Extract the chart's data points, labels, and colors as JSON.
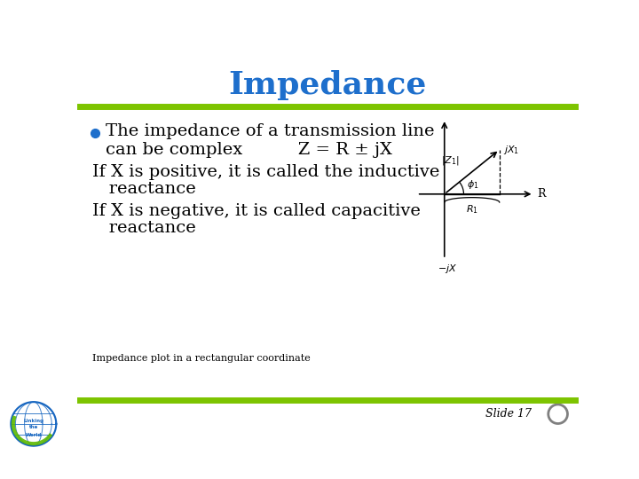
{
  "title": "Impedance",
  "title_color": "#1E6FCC",
  "title_fontsize": 26,
  "bg_color": "#FFFFFF",
  "line_color": "#7DC400",
  "bullet_color": "#1E6FCC",
  "bullet_text_line1": "The impedance of a transmission line",
  "bullet_text_line2": "can be complex          Z = R ± jX",
  "line3": "If X is positive, it is called the inductive",
  "line4": "   reactance",
  "line5": "If X is negative, it is called capacitive",
  "line6": "   reactance",
  "caption": "Impedance plot in a rectangular coordinate",
  "slide_label": "Slide 17",
  "main_text_fontsize": 14,
  "caption_fontsize": 8,
  "slide_fontsize": 9
}
